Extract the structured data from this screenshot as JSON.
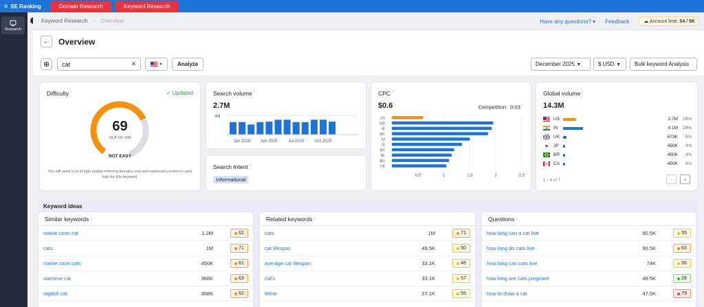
{
  "topbar": {
    "brand": "SE Ranking",
    "btn_domain": "Domain Research",
    "btn_keyword": "Keyword Research"
  },
  "nav": {
    "research": "Research"
  },
  "breadcrumb": {
    "first": "Keyword Research",
    "current": "Overview"
  },
  "header_right": {
    "questions": "Have any questions?",
    "feedback": "Feedback",
    "account_label": "Account limit:",
    "account_value": "54 / 5K"
  },
  "overview": {
    "title": "Overview",
    "search_value": "cat",
    "analyze": "Analyze",
    "date": "December 2025",
    "currency": "$ USD",
    "bulk": "Bulk keyword Analysis"
  },
  "difficulty": {
    "title": "Difficulty",
    "updated": "Updated",
    "value": "69",
    "out_of": "OUT OF 100",
    "level": "NOT EASY",
    "desc": "You will need a lot of high-quality referring domains and well-optimized content to rank high for this keyword.",
    "fraction": 0.69,
    "color": "#f5910b"
  },
  "search_volume": {
    "title": "Search volume",
    "value": "2.7M",
    "ymax_label": "4M",
    "xlabels": [
      "Jan 2025",
      "Apr 2025",
      "Jul 2025",
      "Oct 2025"
    ],
    "bars": [
      2.6,
      2.6,
      2.1,
      2.6,
      2.7,
      3.1,
      3.1,
      2.6,
      2.6,
      3.1,
      3.1,
      2.7
    ],
    "bar_max": 4,
    "color": "#1d74d8"
  },
  "search_intent": {
    "title": "Search Intent",
    "badge": "Informational"
  },
  "cpc": {
    "title": "CPC",
    "value": "$0.6",
    "competition_label": "Competition:",
    "competition_value": "0.03",
    "countries": [
      "US",
      "KW",
      "IE",
      "MC",
      "IQ",
      "IS",
      "MT",
      "NL",
      "MU",
      "UK"
    ],
    "values": [
      0.6,
      1.95,
      1.92,
      1.85,
      1.5,
      1.35,
      1.2,
      1.15,
      1.1,
      1.05
    ],
    "xticks": [
      "0.5",
      "1",
      "1.5",
      "2",
      "2.5"
    ],
    "xtick_values": [
      0.5,
      1,
      1.5,
      2,
      2.5
    ],
    "xmax": 2.5,
    "highlight": "#f5910b",
    "color": "#1d74d8"
  },
  "global_volume": {
    "title": "Global volume",
    "value": "14.3M",
    "pagination": "1 – 6 of 7",
    "rows": [
      {
        "code": "US",
        "vol": "2.7M",
        "pct": "19%",
        "share": 0.19,
        "color": "#f5910b"
      },
      {
        "code": "IN",
        "vol": "4.1M",
        "pct": "29%",
        "share": 0.29,
        "color": "#1d74d8"
      },
      {
        "code": "UK",
        "vol": "673K",
        "pct": "5%",
        "share": 0.05,
        "color": "#1d74d8"
      },
      {
        "code": "JP",
        "vol": "450K",
        "pct": "3%",
        "share": 0.03,
        "color": "#1d74d8"
      },
      {
        "code": "BR",
        "vol": "450K",
        "pct": "3%",
        "share": 0.03,
        "color": "#1d74d8"
      },
      {
        "code": "CA",
        "vol": "450K",
        "pct": "3%",
        "share": 0.03,
        "color": "#1d74d8"
      }
    ]
  },
  "keyword_ideas": {
    "title": "Keyword ideas",
    "similar": {
      "title": "Similar keywords",
      "rows": [
        {
          "kw": "maine coon cat",
          "vol": "1.2M",
          "kd": "62"
        },
        {
          "kw": "cats",
          "vol": "1M",
          "kd": "71"
        },
        {
          "kw": "maine coon cats",
          "vol": "450K",
          "kd": "61"
        },
        {
          "kw": "siamese cat",
          "vol": "368K",
          "kd": "63"
        },
        {
          "kw": "ragdoll cat",
          "vol": "368K",
          "kd": "62"
        }
      ]
    },
    "related": {
      "title": "Related keywords",
      "rows": [
        {
          "kw": "cats",
          "vol": "1M",
          "kd": "71"
        },
        {
          "kw": "cat lifespan",
          "vol": "49.5K",
          "kd": "50"
        },
        {
          "kw": "average cat lifespan",
          "vol": "33.1K",
          "kd": "46"
        },
        {
          "kw": "cat's",
          "vol": "33.1K",
          "kd": "57"
        },
        {
          "kw": "feline",
          "vol": "27.1K",
          "kd": "55"
        }
      ]
    },
    "questions": {
      "title": "Questions",
      "rows": [
        {
          "kw": "how long can a cat live",
          "vol": "90.5K",
          "kd": "55"
        },
        {
          "kw": "how long do cats live",
          "vol": "90.5K",
          "kd": "63"
        },
        {
          "kw": "how long can cats live",
          "vol": "74K",
          "kd": "56"
        },
        {
          "kw": "how long are cats pregnant",
          "vol": "49.5K",
          "kd": "28"
        },
        {
          "kw": "how to draw a cat",
          "vol": "47.5K",
          "kd": "79"
        }
      ]
    }
  }
}
